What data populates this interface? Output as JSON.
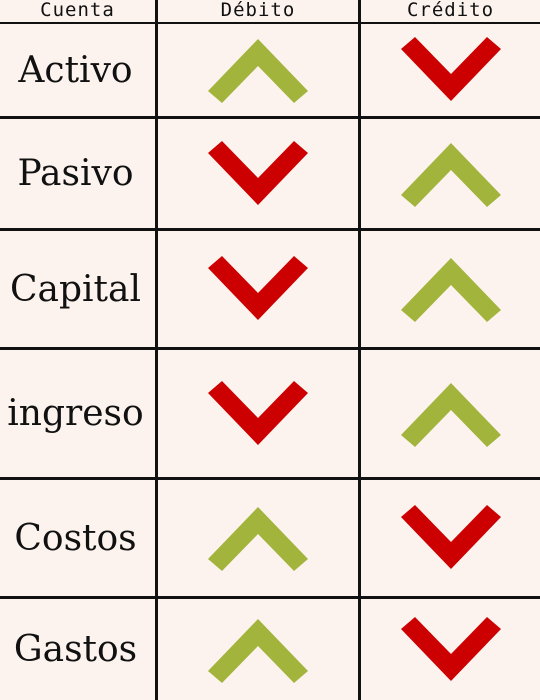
{
  "header": {
    "cuenta": "Cuenta",
    "debito": "Débito",
    "credito": "Crédito"
  },
  "colors": {
    "up": "#a3b43d",
    "down": "#cc0000",
    "background": "#fcf3ee",
    "line": "#111111"
  },
  "rows": [
    {
      "label": "Activo",
      "debito": "up-arrow-icon",
      "credito": "down-arrow-icon"
    },
    {
      "label": "Pasivo",
      "debito": "down-arrow-icon",
      "credito": "up-arrow-icon"
    },
    {
      "label": "Capital",
      "debito": "down-arrow-icon",
      "credito": "up-arrow-icon"
    },
    {
      "label": "ingreso",
      "debito": "down-arrow-icon",
      "credito": "up-arrow-icon"
    },
    {
      "label": "Costos",
      "debito": "up-arrow-icon",
      "credito": "down-arrow-icon"
    },
    {
      "label": "Gastos",
      "debito": "up-arrow-icon",
      "credito": "down-arrow-icon"
    }
  ]
}
